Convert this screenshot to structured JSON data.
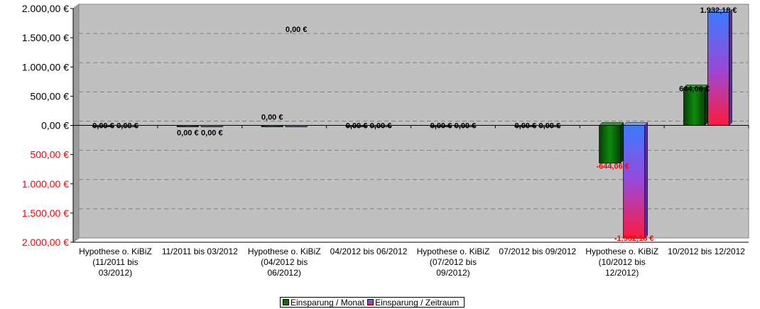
{
  "chart_data": {
    "type": "bar",
    "categories": [
      "Hypothese o. KiBiZ\n(11/2011 bis\n03/2012)",
      "11/2011 bis 03/2012",
      "Hypothese o. KiBiZ\n(04/2012 bis\n06/2012)",
      "04/2012 bis 06/2012",
      "Hypothese o. KiBiZ\n(07/2012 bis\n09/2012)",
      "07/2012 bis 09/2012",
      "Hypothese o. KiBiZ\n(10/2012 bis\n12/2012)",
      "10/2012 bis 12/2012"
    ],
    "series": [
      {
        "name": "Einsparung / Monat",
        "values": [
          0,
          0,
          0,
          0,
          0,
          0,
          -644.06,
          644.06
        ]
      },
      {
        "name": "Einsparung / Zeitraum",
        "values": [
          0,
          0,
          0,
          0,
          0,
          0,
          -1932.18,
          1932.18
        ]
      }
    ],
    "data_labels": [
      [
        "0,00 €",
        "0,00 €",
        "0,00 €",
        "0,00 €",
        "0,00 €",
        "0,00 €",
        "-644,06 €",
        "644,06 €"
      ],
      [
        "0,00 €",
        "0,00 €",
        "0,00 €",
        "0,00 €",
        "0,00 €",
        "0,00 €",
        "-1.932,18 €",
        "1.932,18 €"
      ]
    ],
    "y_ticks": [
      2000,
      1500,
      1000,
      500,
      0,
      -500,
      -1000,
      -1500,
      -2000
    ],
    "y_tick_labels": [
      "2.000,00 €",
      "1.500,00 €",
      "1.000,00 €",
      "500,00 €",
      "0,00 €",
      "500,00 €",
      "1.000,00 €",
      "1.500,00 €",
      "2.000,00 €"
    ],
    "ylim": [
      -2000,
      2000
    ],
    "grid": true,
    "legend_position": "bottom",
    "colors": {
      "plot_background": "#c0c0c0",
      "series1": "#0b6e0b",
      "series2_top": "#3a7bff",
      "series2_bottom": "#ff1a3d",
      "negative_label": "#ff0000",
      "positive_label": "#000000",
      "gridline": "#808080"
    }
  }
}
